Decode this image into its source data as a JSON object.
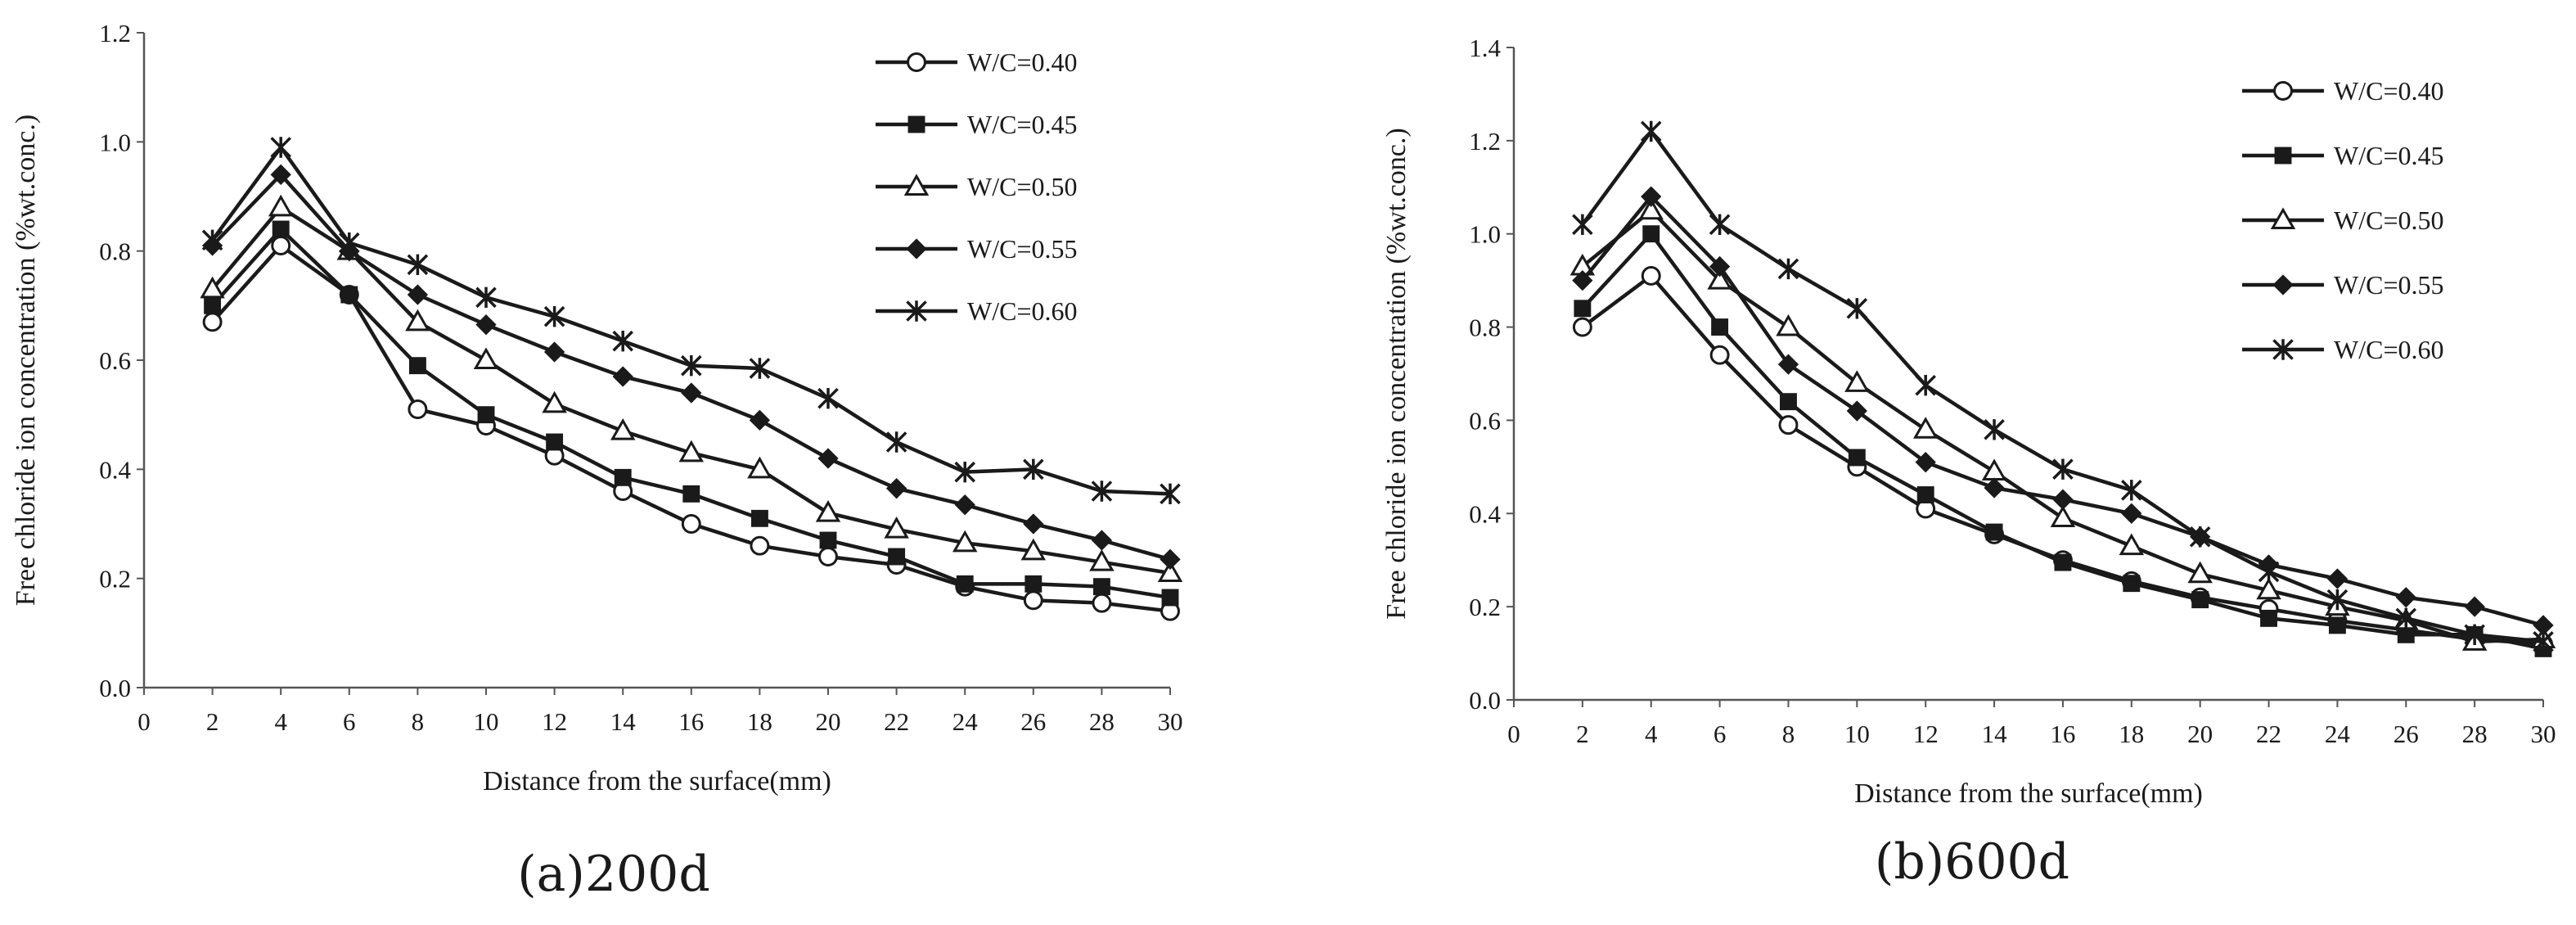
{
  "figure": {
    "caption_a": "(a)200d",
    "caption_b": "(b)600d"
  },
  "chart_data": [
    {
      "type": "line",
      "panel": "(a)200d",
      "xlabel": "Distance from the surface(mm)",
      "ylabel": "Free chloride ion concentration (%wt.conc.)",
      "xlim": [
        0,
        30
      ],
      "ylim": [
        0,
        1.2
      ],
      "xticks": [
        "0",
        "2",
        "4",
        "6",
        "8",
        "10",
        "12",
        "14",
        "16",
        "18",
        "20",
        "22",
        "24",
        "26",
        "28",
        "30"
      ],
      "yticks": [
        "0.0",
        "0.2",
        "0.4",
        "0.6",
        "0.8",
        "1.0",
        "1.2"
      ],
      "grid": false,
      "legend_position": "top-right",
      "x": [
        2,
        4,
        6,
        8,
        10,
        12,
        14,
        16,
        18,
        20,
        22,
        24,
        26,
        28,
        30
      ],
      "series": [
        {
          "name": "W/C=0.40",
          "marker": "circle-open",
          "values": [
            0.67,
            0.81,
            0.72,
            0.51,
            0.48,
            0.425,
            0.36,
            0.3,
            0.26,
            0.24,
            0.225,
            0.185,
            0.16,
            0.155,
            0.14
          ]
        },
        {
          "name": "W/C=0.45",
          "marker": "square-filled",
          "values": [
            0.7,
            0.84,
            0.72,
            0.59,
            0.5,
            0.45,
            0.385,
            0.355,
            0.31,
            0.27,
            0.24,
            0.19,
            0.19,
            0.185,
            0.165
          ]
        },
        {
          "name": "W/C=0.50",
          "marker": "triangle-open",
          "values": [
            0.73,
            0.88,
            0.8,
            0.67,
            0.6,
            0.52,
            0.47,
            0.43,
            0.4,
            0.32,
            0.29,
            0.265,
            0.25,
            0.23,
            0.21
          ]
        },
        {
          "name": "W/C=0.55",
          "marker": "diamond-filled",
          "values": [
            0.81,
            0.94,
            0.8,
            0.72,
            0.665,
            0.615,
            0.57,
            0.54,
            0.49,
            0.42,
            0.365,
            0.335,
            0.3,
            0.27,
            0.235
          ]
        },
        {
          "name": "W/C=0.60",
          "marker": "asterisk",
          "values": [
            0.82,
            0.99,
            0.815,
            0.775,
            0.715,
            0.68,
            0.635,
            0.59,
            0.585,
            0.53,
            0.45,
            0.395,
            0.4,
            0.36,
            0.355
          ]
        }
      ]
    },
    {
      "type": "line",
      "panel": "(b)600d",
      "xlabel": "Distance from the surface(mm)",
      "ylabel": "Free chloride ion concentration (%wt.conc.)",
      "xlim": [
        0,
        30
      ],
      "ylim": [
        0,
        1.4
      ],
      "xticks": [
        "0",
        "2",
        "4",
        "6",
        "8",
        "10",
        "12",
        "14",
        "16",
        "18",
        "20",
        "22",
        "24",
        "26",
        "28",
        "30"
      ],
      "yticks": [
        "0.0",
        "0.2",
        "0.4",
        "0.6",
        "0.8",
        "1.0",
        "1.2",
        "1.4"
      ],
      "grid": false,
      "legend_position": "top-right",
      "x": [
        2,
        4,
        6,
        8,
        10,
        12,
        14,
        16,
        18,
        20,
        22,
        24,
        26,
        28,
        30
      ],
      "series": [
        {
          "name": "W/C=0.40",
          "marker": "circle-open",
          "values": [
            0.8,
            0.91,
            0.74,
            0.59,
            0.5,
            0.41,
            0.355,
            0.3,
            0.255,
            0.22,
            0.195,
            0.17,
            0.15,
            0.13,
            0.12
          ]
        },
        {
          "name": "W/C=0.45",
          "marker": "square-filled",
          "values": [
            0.84,
            1.0,
            0.8,
            0.64,
            0.52,
            0.44,
            0.36,
            0.295,
            0.25,
            0.215,
            0.175,
            0.16,
            0.14,
            0.14,
            0.11
          ]
        },
        {
          "name": "W/C=0.50",
          "marker": "triangle-open",
          "values": [
            0.93,
            1.05,
            0.9,
            0.8,
            0.68,
            0.58,
            0.49,
            0.39,
            0.33,
            0.27,
            0.235,
            0.2,
            0.17,
            0.125,
            0.13
          ]
        },
        {
          "name": "W/C=0.55",
          "marker": "diamond-filled",
          "values": [
            0.9,
            1.08,
            0.93,
            0.72,
            0.62,
            0.51,
            0.455,
            0.43,
            0.4,
            0.35,
            0.29,
            0.26,
            0.22,
            0.2,
            0.16
          ]
        },
        {
          "name": "W/C=0.60",
          "marker": "asterisk",
          "values": [
            1.02,
            1.22,
            1.02,
            0.925,
            0.84,
            0.675,
            0.58,
            0.495,
            0.45,
            0.35,
            0.275,
            0.215,
            0.175,
            0.14,
            0.125
          ]
        }
      ]
    }
  ]
}
